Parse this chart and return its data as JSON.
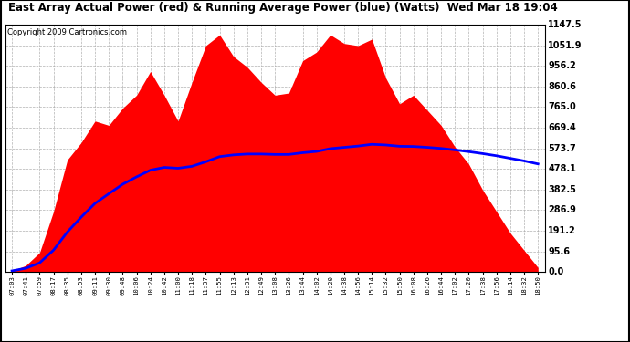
{
  "title": "East Array Actual Power (red) & Running Average Power (blue) (Watts)  Wed Mar 18 19:04",
  "copyright": "Copyright 2009 Cartronics.com",
  "ylabel_right": [
    "0.0",
    "95.6",
    "191.2",
    "286.9",
    "382.5",
    "478.1",
    "573.7",
    "669.4",
    "765.0",
    "860.6",
    "956.2",
    "1051.9",
    "1147.5"
  ],
  "ymax": 1147.5,
  "ymin": 0.0,
  "background_color": "#ffffff",
  "grid_color": "#aaaaaa",
  "actual_color": "#ff0000",
  "average_color": "#0000ff",
  "x_labels": [
    "07:03",
    "07:41",
    "07:59",
    "08:17",
    "08:35",
    "08:53",
    "09:11",
    "09:30",
    "09:48",
    "10:06",
    "10:24",
    "10:42",
    "11:00",
    "11:18",
    "11:37",
    "11:55",
    "12:13",
    "12:31",
    "12:49",
    "13:08",
    "13:26",
    "13:44",
    "14:02",
    "14:20",
    "14:38",
    "14:56",
    "15:14",
    "15:32",
    "15:50",
    "16:08",
    "16:26",
    "16:44",
    "17:02",
    "17:20",
    "17:38",
    "17:56",
    "18:14",
    "18:32",
    "18:50"
  ],
  "actual_values": [
    5,
    30,
    90,
    280,
    520,
    600,
    700,
    680,
    760,
    820,
    930,
    820,
    700,
    880,
    1050,
    1100,
    1000,
    950,
    880,
    820,
    830,
    980,
    1020,
    1100,
    1060,
    1050,
    1080,
    900,
    780,
    820,
    750,
    680,
    580,
    500,
    380,
    280,
    180,
    100,
    20
  ],
  "average_values": [
    5,
    17,
    42,
    101,
    185,
    254,
    318,
    363,
    407,
    441,
    472,
    485,
    481,
    490,
    511,
    535,
    543,
    547,
    547,
    545,
    545,
    553,
    559,
    572,
    578,
    584,
    592,
    589,
    583,
    582,
    578,
    573,
    566,
    558,
    549,
    539,
    527,
    515,
    501
  ]
}
